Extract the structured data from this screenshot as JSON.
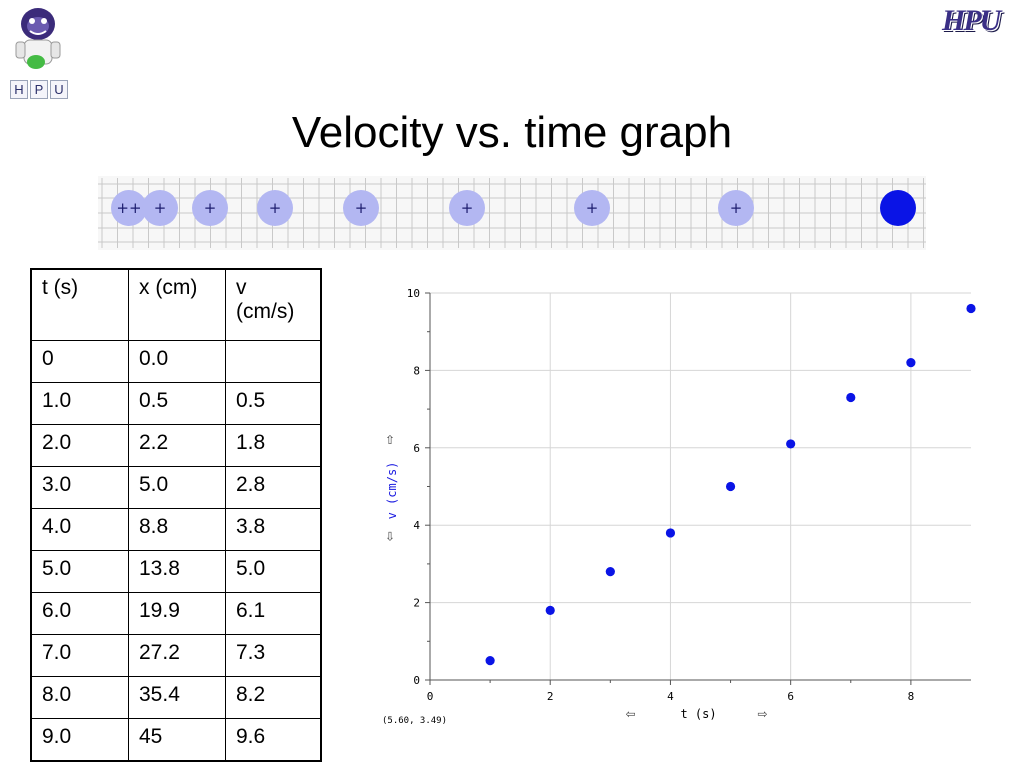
{
  "header": {
    "title": "Velocity vs. time graph",
    "left_logo_letters": [
      "H",
      "P",
      "U"
    ],
    "right_logo_text": "HPU"
  },
  "motion_strip": {
    "markers": [
      "++",
      "+",
      "+",
      "+",
      "+",
      "+",
      "+",
      "+"
    ]
  },
  "table": {
    "headers": [
      "t (s)",
      "x (cm)",
      "v (cm/s)"
    ],
    "rows": [
      [
        "0",
        "0.0",
        ""
      ],
      [
        "1.0",
        "0.5",
        "0.5"
      ],
      [
        "2.0",
        "2.2",
        "1.8"
      ],
      [
        "3.0",
        "5.0",
        "2.8"
      ],
      [
        "4.0",
        "8.8",
        "3.8"
      ],
      [
        "5.0",
        "13.8",
        "5.0"
      ],
      [
        "6.0",
        "19.9",
        "6.1"
      ],
      [
        "7.0",
        "27.2",
        "7.3"
      ],
      [
        "8.0",
        "35.4",
        "8.2"
      ],
      [
        "9.0",
        "45",
        "9.6"
      ]
    ]
  },
  "chart_data": {
    "type": "scatter",
    "title": "",
    "xlabel": "t (s)",
    "ylabel": "v (cm/s)",
    "xlim": [
      0,
      9
    ],
    "ylim": [
      0,
      10
    ],
    "xticks": [
      0,
      2,
      4,
      6,
      8
    ],
    "yticks": [
      0,
      2,
      4,
      6,
      8,
      10
    ],
    "grid": true,
    "point_color": "#0a14e6",
    "series": [
      {
        "x": [
          1,
          2,
          3,
          4,
          5,
          6,
          7,
          8,
          9
        ],
        "y": [
          0.5,
          1.8,
          2.8,
          3.8,
          5.0,
          6.1,
          7.3,
          8.2,
          9.6
        ]
      }
    ],
    "coordinate_readout": "(5.60, 3.49)",
    "x_arrows": [
      "⇦",
      "⇨"
    ],
    "y_arrows": [
      "⇧",
      "⇩"
    ]
  },
  "colors": {
    "ball": "#0a14e6",
    "ghost": "#b3b7f2",
    "axis_label": "#1a1ae0"
  }
}
